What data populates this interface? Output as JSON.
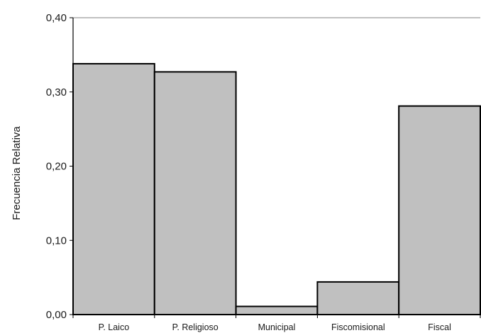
{
  "chart_data": {
    "type": "bar",
    "categories": [
      "P. Laico",
      "P. Religioso",
      "Municipal",
      "Fiscomisional",
      "Fiscal"
    ],
    "values": [
      0.338,
      0.327,
      0.011,
      0.044,
      0.281
    ],
    "ylabel": "Frecuencia Relativa",
    "xlabel": "",
    "ylim": [
      0,
      0.4
    ],
    "yticks": [
      {
        "value": 0.0,
        "label": "0,00"
      },
      {
        "value": 0.1,
        "label": "0,10"
      },
      {
        "value": 0.2,
        "label": "0,20"
      },
      {
        "value": 0.3,
        "label": "0,30"
      },
      {
        "value": 0.4,
        "label": "0,40"
      }
    ],
    "grid": false,
    "bar_gap": 0,
    "colors": {
      "bar_fill": "#c0c0c0",
      "bar_stroke": "#000000",
      "axis": "#000000",
      "top_border": "#808080"
    }
  }
}
